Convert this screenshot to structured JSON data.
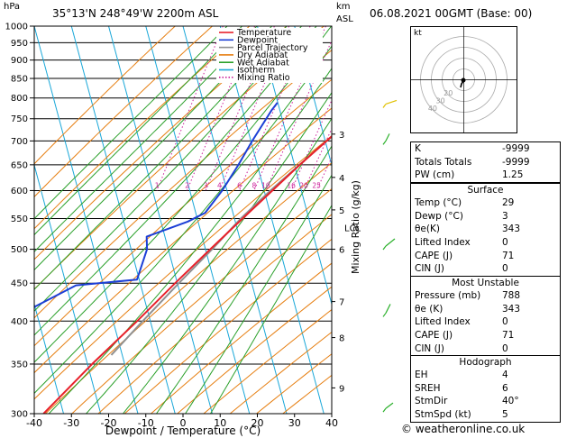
{
  "header": {
    "hpa_label": "hPa",
    "location": "35°13'N  248°49'W  2200m  ASL",
    "km_label": "km",
    "asl_label": "ASL",
    "datetime": "06.08.2021  00GMT  (Base: 00)"
  },
  "chart_data": {
    "type": "skew-t",
    "xlabel": "Dewpoint / Temperature (°C)",
    "ylabel": "Mixing Ratio (g/kg)",
    "xlim": [
      -40,
      40
    ],
    "x_ticks": [
      "-40",
      "-30",
      "-20",
      "-10",
      "0",
      "10",
      "20",
      "30",
      "40"
    ],
    "pressure_levels": [
      "300",
      "350",
      "400",
      "450",
      "500",
      "550",
      "600",
      "650",
      "700",
      "750",
      "800",
      "850",
      "900",
      "950",
      "1000"
    ],
    "km_ticks": [
      {
        "label": "9",
        "p": 325
      },
      {
        "label": "8",
        "p": 380
      },
      {
        "label": "7",
        "p": 425
      },
      {
        "label": "6",
        "p": 500
      },
      {
        "label": "5",
        "p": 565
      },
      {
        "label": "4",
        "p": 625
      },
      {
        "label": "3",
        "p": 715
      }
    ],
    "lcl_label": "LCL",
    "lcl_p": 535,
    "mixing_ratio_labels": [
      "1",
      "2",
      "3",
      "4",
      "6",
      "8",
      "10",
      "16",
      "20",
      "25"
    ],
    "mixing_ratio_values": [
      1,
      2,
      3,
      4,
      6,
      8,
      10,
      16,
      20,
      25
    ],
    "legend": [
      {
        "name": "Temperature",
        "color": "#e8202a",
        "style": "solid"
      },
      {
        "name": "Dewpoint",
        "color": "#1c3fd6",
        "style": "solid"
      },
      {
        "name": "Parcel Trajectory",
        "color": "#909090",
        "style": "solid"
      },
      {
        "name": "Dry Adiabat",
        "color": "#e67e10",
        "style": "solid"
      },
      {
        "name": "Wet Adiabat",
        "color": "#2aa02a",
        "style": "solid"
      },
      {
        "name": "Isotherm",
        "color": "#19a7d8",
        "style": "solid"
      },
      {
        "name": "Mixing Ratio",
        "color": "#cc1f9a",
        "style": "dotted"
      }
    ],
    "temperature": [
      {
        "p": 788,
        "t": 29
      },
      {
        "p": 750,
        "t": 24
      },
      {
        "p": 700,
        "t": 19
      },
      {
        "p": 650,
        "t": 13.5
      },
      {
        "p": 600,
        "t": 8
      },
      {
        "p": 550,
        "t": 2
      },
      {
        "p": 500,
        "t": -4.5
      },
      {
        "p": 450,
        "t": -11.5
      },
      {
        "p": 400,
        "t": -19
      },
      {
        "p": 350,
        "t": -28
      },
      {
        "p": 300,
        "t": -37.5
      }
    ],
    "dewpoint": [
      {
        "p": 788,
        "t": 3
      },
      {
        "p": 770,
        "t": 2
      },
      {
        "p": 700,
        "t": -1
      },
      {
        "p": 650,
        "t": -3
      },
      {
        "p": 600,
        "t": -5.5
      },
      {
        "p": 560,
        "t": -8.5
      },
      {
        "p": 545,
        "t": -12.5
      },
      {
        "p": 520,
        "t": -22.5
      },
      {
        "p": 500,
        "t": -21.5
      },
      {
        "p": 455,
        "t": -22
      },
      {
        "p": 447,
        "t": -38
      },
      {
        "p": 400,
        "t": -54
      },
      {
        "p": 350,
        "t": -63
      },
      {
        "p": 300,
        "t": -73
      }
    ],
    "parcel": [
      {
        "p": 788,
        "t": 29
      },
      {
        "p": 700,
        "t": 19
      },
      {
        "p": 600,
        "t": 7.5
      },
      {
        "p": 550,
        "t": 1.5
      },
      {
        "p": 500,
        "t": -4
      },
      {
        "p": 450,
        "t": -10.5
      },
      {
        "p": 400,
        "t": -17.5
      },
      {
        "p": 360,
        "t": -23.5
      }
    ],
    "wind_barb_colors": [
      "#2ab02a",
      "#e0c000"
    ]
  },
  "hodograph": {
    "kt_label": "kt",
    "ring_labels": [
      "40",
      "30",
      "20"
    ]
  },
  "indices": {
    "rows": [
      {
        "label": "K",
        "value": "-9999"
      },
      {
        "label": "Totals Totals",
        "value": "-9999"
      },
      {
        "label": "PW (cm)",
        "value": "1.25"
      }
    ]
  },
  "surface": {
    "title": "Surface",
    "rows": [
      {
        "label": "Temp (°C)",
        "value": "29"
      },
      {
        "label": "Dewp (°C)",
        "value": "3"
      },
      {
        "label": "θe(K)",
        "value": "343"
      },
      {
        "label": "Lifted Index",
        "value": "0"
      },
      {
        "label": "CAPE (J)",
        "value": "71"
      },
      {
        "label": "CIN (J)",
        "value": "0"
      }
    ]
  },
  "most_unstable": {
    "title": "Most Unstable",
    "rows": [
      {
        "label": "Pressure (mb)",
        "value": "788"
      },
      {
        "label": "θe (K)",
        "value": "343"
      },
      {
        "label": "Lifted Index",
        "value": "0"
      },
      {
        "label": "CAPE (J)",
        "value": "71"
      },
      {
        "label": "CIN (J)",
        "value": "0"
      }
    ]
  },
  "hodograph_table": {
    "title": "Hodograph",
    "rows": [
      {
        "label": "EH",
        "value": "4"
      },
      {
        "label": "SREH",
        "value": "6"
      },
      {
        "label": "StmDir",
        "value": "40°"
      },
      {
        "label": "StmSpd (kt)",
        "value": "5"
      }
    ]
  },
  "footer": {
    "copyright": "© weatheronline.co.uk"
  }
}
